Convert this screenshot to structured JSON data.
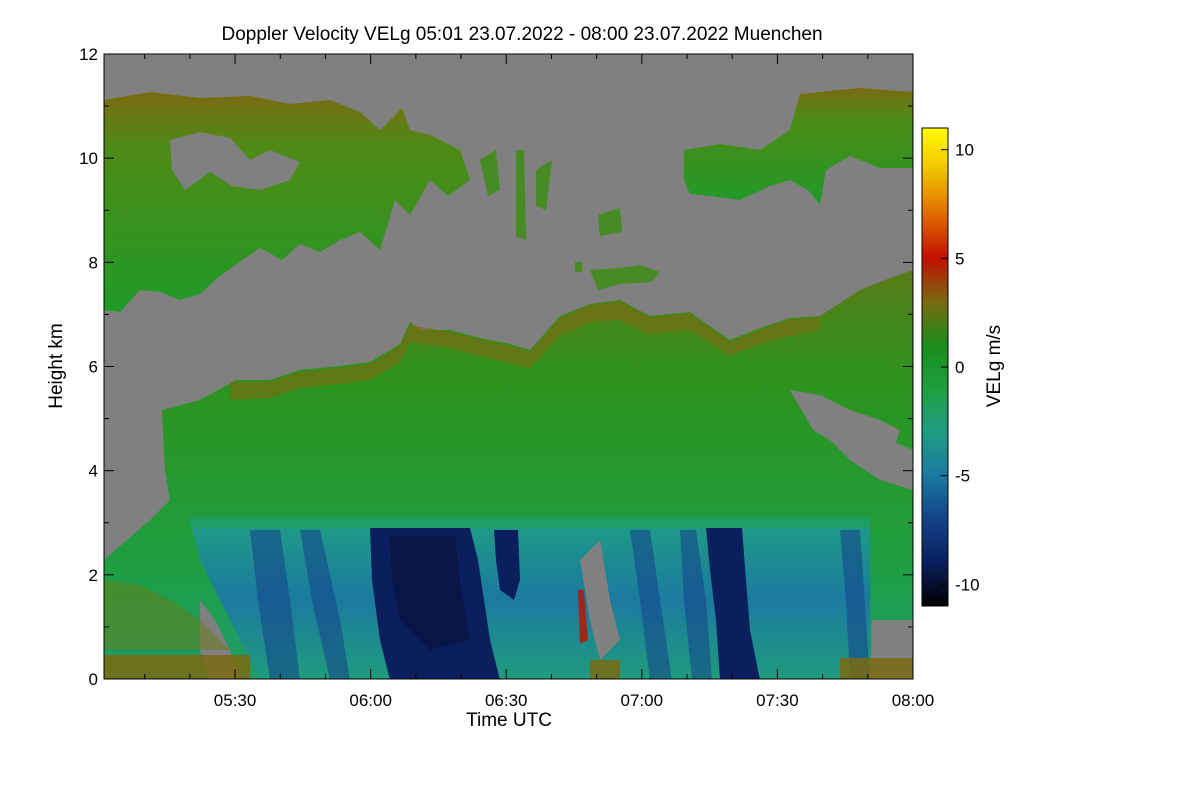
{
  "chart_data": {
    "type": "heatmap",
    "title": "Doppler Velocity VELg   05:01 23.07.2022 - 08:00 23.07.2022 Muenchen",
    "xlabel": "Time UTC",
    "ylabel": "Height km",
    "colorbar_label": "VELg m/s",
    "x_range": [
      "05:01",
      "08:00"
    ],
    "x_ticks": [
      "05:30",
      "06:00",
      "06:30",
      "07:00",
      "07:30",
      "08:00"
    ],
    "y_range": [
      0,
      12
    ],
    "y_ticks": [
      "0",
      "2",
      "4",
      "6",
      "8",
      "10",
      "12"
    ],
    "color_range": [
      -11,
      11
    ],
    "colorbar_ticks": [
      "10",
      "5",
      "0",
      "-5",
      "-10"
    ],
    "background_color": "#808080",
    "colormap": [
      "#000000",
      "#0b1f5e",
      "#14428a",
      "#1b7aa0",
      "#1f9c84",
      "#1f9e40",
      "#1a8c1a",
      "#7a6a12",
      "#c01000",
      "#e06a00",
      "#f0c000",
      "#ffff00"
    ],
    "regions": [
      {
        "feature": "upper cloud layer, near-zero velocity",
        "time_start": "05:01",
        "time_end": "06:15",
        "height_km": [
          7.3,
          11.2
        ]
      },
      {
        "feature": "upper cloud layer, near-zero velocity",
        "time_start": "07:10",
        "time_end": "08:00",
        "height_km": [
          9.2,
          11.2
        ]
      },
      {
        "feature": "mid cloud layer, weak downward velocity",
        "time_start": "05:15",
        "time_end": "08:00",
        "height_km": [
          2.9,
          6.8
        ]
      },
      {
        "feature": "rain below melting layer, strong downward velocity",
        "time_start": "05:25",
        "time_end": "07:55",
        "height_km": [
          0,
          2.9
        ]
      },
      {
        "feature": "strongest downdraft band",
        "time_start": "06:00",
        "time_end": "06:20",
        "height_km": [
          0,
          2.8
        ],
        "velocity_ms": -9
      },
      {
        "feature": "strongest downdraft band",
        "time_start": "06:28",
        "time_end": "06:32",
        "height_km": [
          0,
          2.8
        ],
        "velocity_ms": -9
      },
      {
        "feature": "strongest downdraft band",
        "time_start": "07:15",
        "time_end": "07:22",
        "height_km": [
          0,
          2.8
        ],
        "velocity_ms": -9
      },
      {
        "feature": "surface clutter",
        "time_start": "05:01",
        "time_end": "08:00",
        "height_km": [
          0,
          0.3
        ]
      }
    ]
  }
}
